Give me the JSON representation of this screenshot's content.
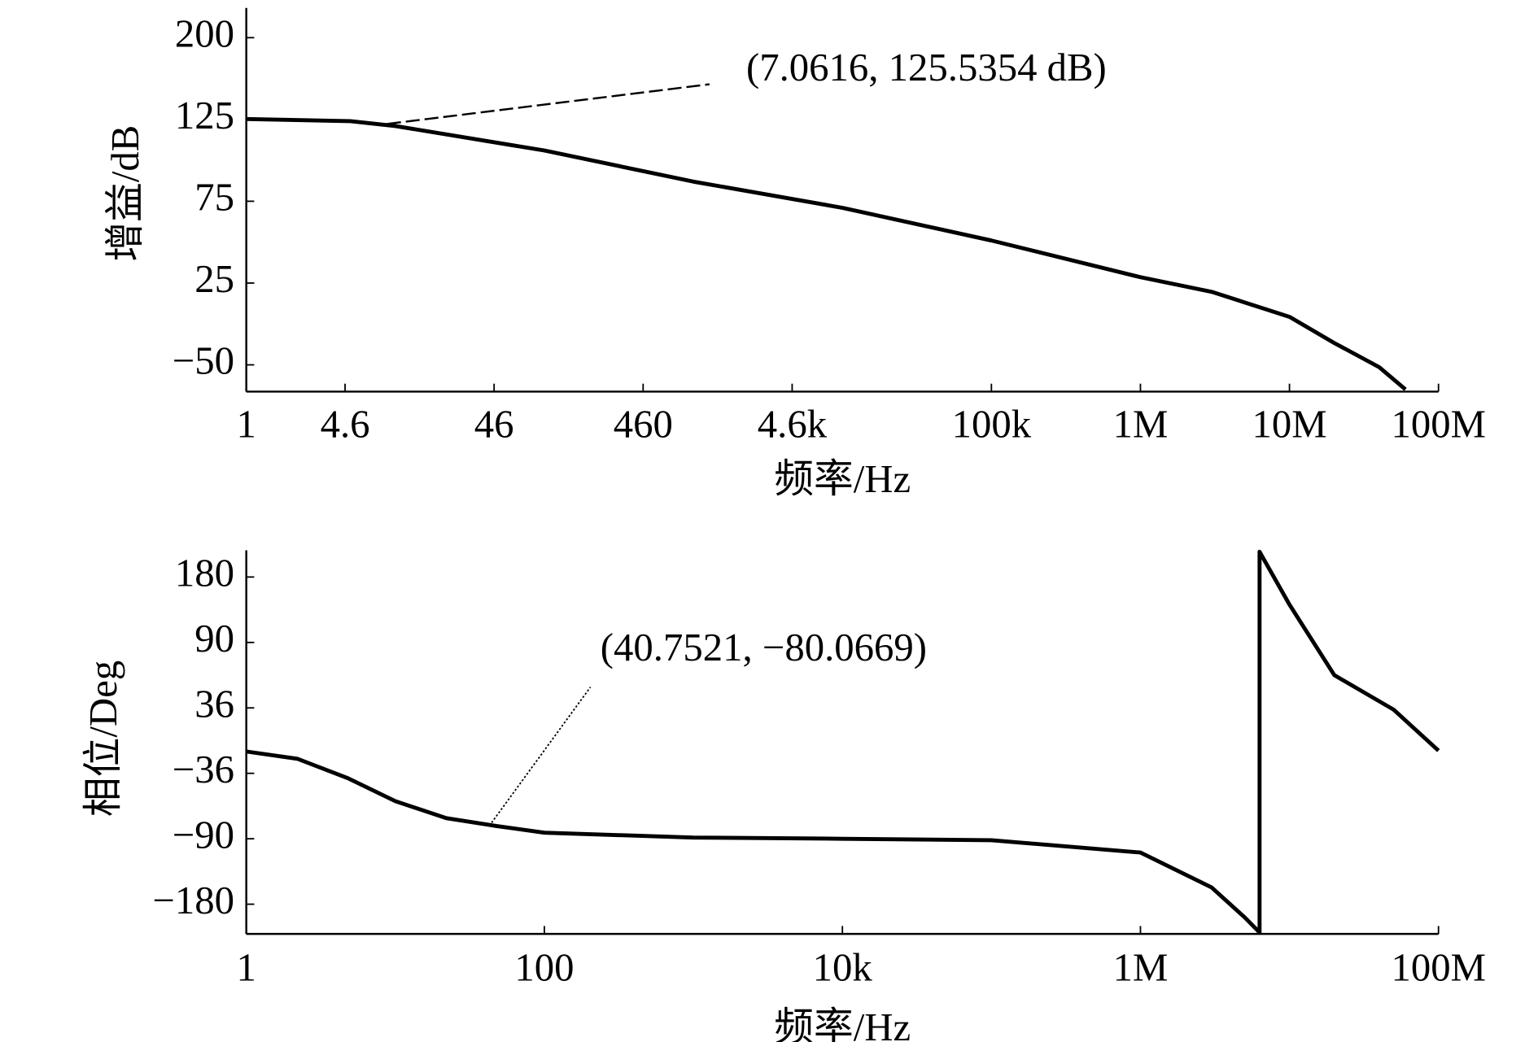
{
  "chart_data": [
    {
      "type": "line",
      "xscale": "log",
      "yscale": "tick-spaced",
      "color": "#000000",
      "xlabel": "频率/Hz",
      "ylabel": "增益/dB",
      "annotations": [
        "(7.0616, 125.5354 dB)"
      ],
      "xlim": [
        1,
        100000000
      ],
      "xticks": [
        1,
        4.6,
        46,
        460,
        {
          "value": 4600,
          "label": "4.6k"
        },
        {
          "value": 100000,
          "label": "100k"
        },
        {
          "value": 1000000,
          "label": "1M"
        },
        {
          "value": 10000000,
          "label": "10M"
        },
        {
          "value": 100000000,
          "label": "100M"
        }
      ],
      "ylim": [
        -74,
        227
      ],
      "yticks": [
        200,
        125,
        75,
        25,
        {
          "value": -50,
          "label": "−50"
        }
      ],
      "x": [
        1,
        5,
        10,
        100,
        1000,
        10000,
        100000,
        1000000,
        3000000,
        10000000,
        20000000,
        40000000,
        60000000
      ],
      "values": [
        125.5,
        124,
        121,
        106,
        87,
        71,
        51,
        28.6,
        17,
        -6,
        -30,
        -52,
        -72
      ]
    },
    {
      "type": "line",
      "xscale": "log",
      "yscale": "tick-spaced",
      "color": "#000000",
      "xlabel": "频率/Hz",
      "ylabel": "相位/Deg",
      "annotations": [
        "(40.7521, −80.0669)"
      ],
      "xlim": [
        1,
        100000000
      ],
      "xticks": [
        1,
        100,
        {
          "value": 10000,
          "label": "10k"
        },
        {
          "value": 1000000,
          "label": "1M"
        },
        {
          "value": 100000000,
          "label": "100M"
        }
      ],
      "ylim": [
        -221,
        217
      ],
      "yticks": [
        180,
        90,
        36,
        {
          "value": -36,
          "label": "−36"
        },
        {
          "value": -90,
          "label": "−90"
        },
        {
          "value": -180,
          "label": "−180"
        }
      ],
      "x": [
        1,
        2.2,
        4.8,
        10,
        22,
        48,
        100,
        1000,
        10000,
        100000,
        1000000,
        3000000,
        5000000,
        6300000,
        6300000,
        10000000,
        20000000,
        50000000,
        100000000
      ],
      "values": [
        -12,
        -20,
        -40,
        -59,
        -73,
        -79.5,
        -85,
        -89,
        -90,
        -92,
        -109,
        -157,
        -198,
        -219,
        215,
        142,
        63,
        34,
        -11
      ]
    }
  ]
}
